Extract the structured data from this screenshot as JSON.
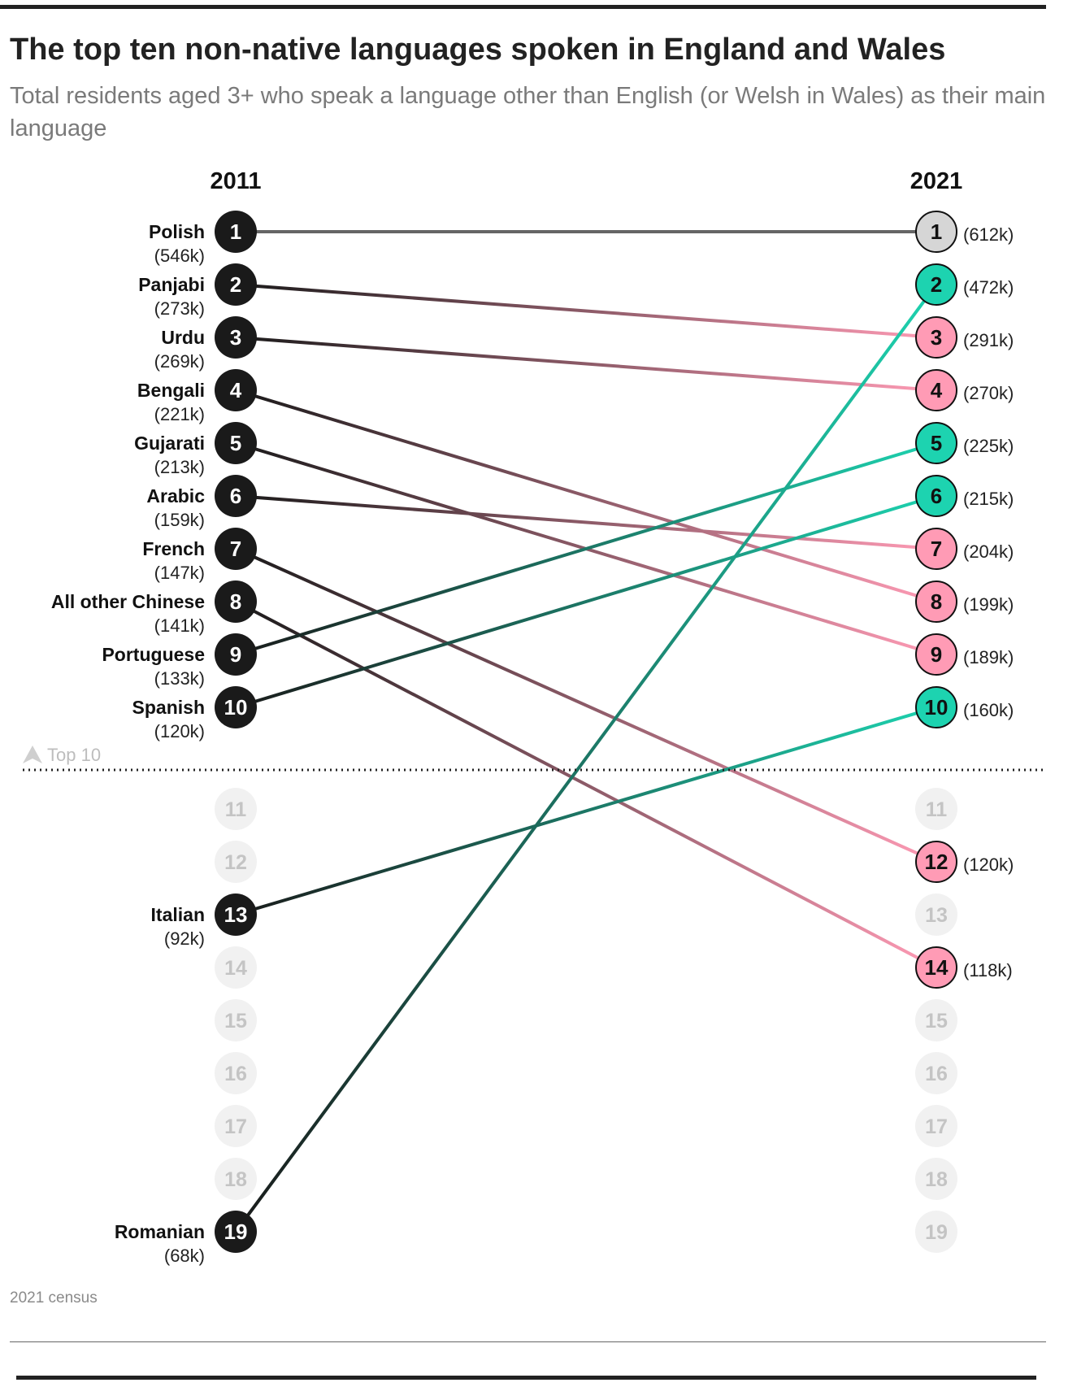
{
  "title": "The top ten non-native languages spoken in England and Wales",
  "subtitle": "Total residents aged 3+ who speak a language other than English (or Welsh in Wales) as their main language",
  "source": "2021 census",
  "colors": {
    "dark": "#1a1a1a",
    "rise": "#1dd3b0",
    "fall": "#ff9bb5",
    "same": "#d6d6d6",
    "ghost": "#f1f1f1",
    "ghost_text": "#c4c4c4"
  },
  "chart_data": {
    "type": "slope",
    "title": "The top ten non-native languages spoken in England and Wales",
    "years": [
      "2011",
      "2021"
    ],
    "ranks_shown": [
      1,
      19
    ],
    "top_marker_label": "Top 10",
    "series": [
      {
        "name": "Polish",
        "rank_2011": 1,
        "value_2011": "(546k)",
        "rank_2021": 1,
        "value_2021": "(612k)"
      },
      {
        "name": "Panjabi",
        "rank_2011": 2,
        "value_2011": "(273k)",
        "rank_2021": 3,
        "value_2021": "(291k)"
      },
      {
        "name": "Urdu",
        "rank_2011": 3,
        "value_2011": "(269k)",
        "rank_2021": 4,
        "value_2021": "(270k)"
      },
      {
        "name": "Bengali",
        "rank_2011": 4,
        "value_2011": "(221k)",
        "rank_2021": 8,
        "value_2021": "(199k)"
      },
      {
        "name": "Gujarati",
        "rank_2011": 5,
        "value_2011": "(213k)",
        "rank_2021": 9,
        "value_2021": "(189k)"
      },
      {
        "name": "Arabic",
        "rank_2011": 6,
        "value_2011": "(159k)",
        "rank_2021": 7,
        "value_2021": "(204k)"
      },
      {
        "name": "French",
        "rank_2011": 7,
        "value_2011": "(147k)",
        "rank_2021": 12,
        "value_2021": "(120k)"
      },
      {
        "name": "All other Chinese",
        "rank_2011": 8,
        "value_2011": "(141k)",
        "rank_2021": 14,
        "value_2021": "(118k)"
      },
      {
        "name": "Portuguese",
        "rank_2011": 9,
        "value_2011": "(133k)",
        "rank_2021": 5,
        "value_2021": "(225k)"
      },
      {
        "name": "Spanish",
        "rank_2011": 10,
        "value_2011": "(120k)",
        "rank_2021": 6,
        "value_2021": "(215k)"
      },
      {
        "name": "Italian",
        "rank_2011": 13,
        "value_2011": "(92k)",
        "rank_2021": 10,
        "value_2021": "(160k)"
      },
      {
        "name": "Romanian",
        "rank_2011": 19,
        "value_2011": "(68k)",
        "rank_2021": 2,
        "value_2021": "(472k)"
      }
    ]
  }
}
